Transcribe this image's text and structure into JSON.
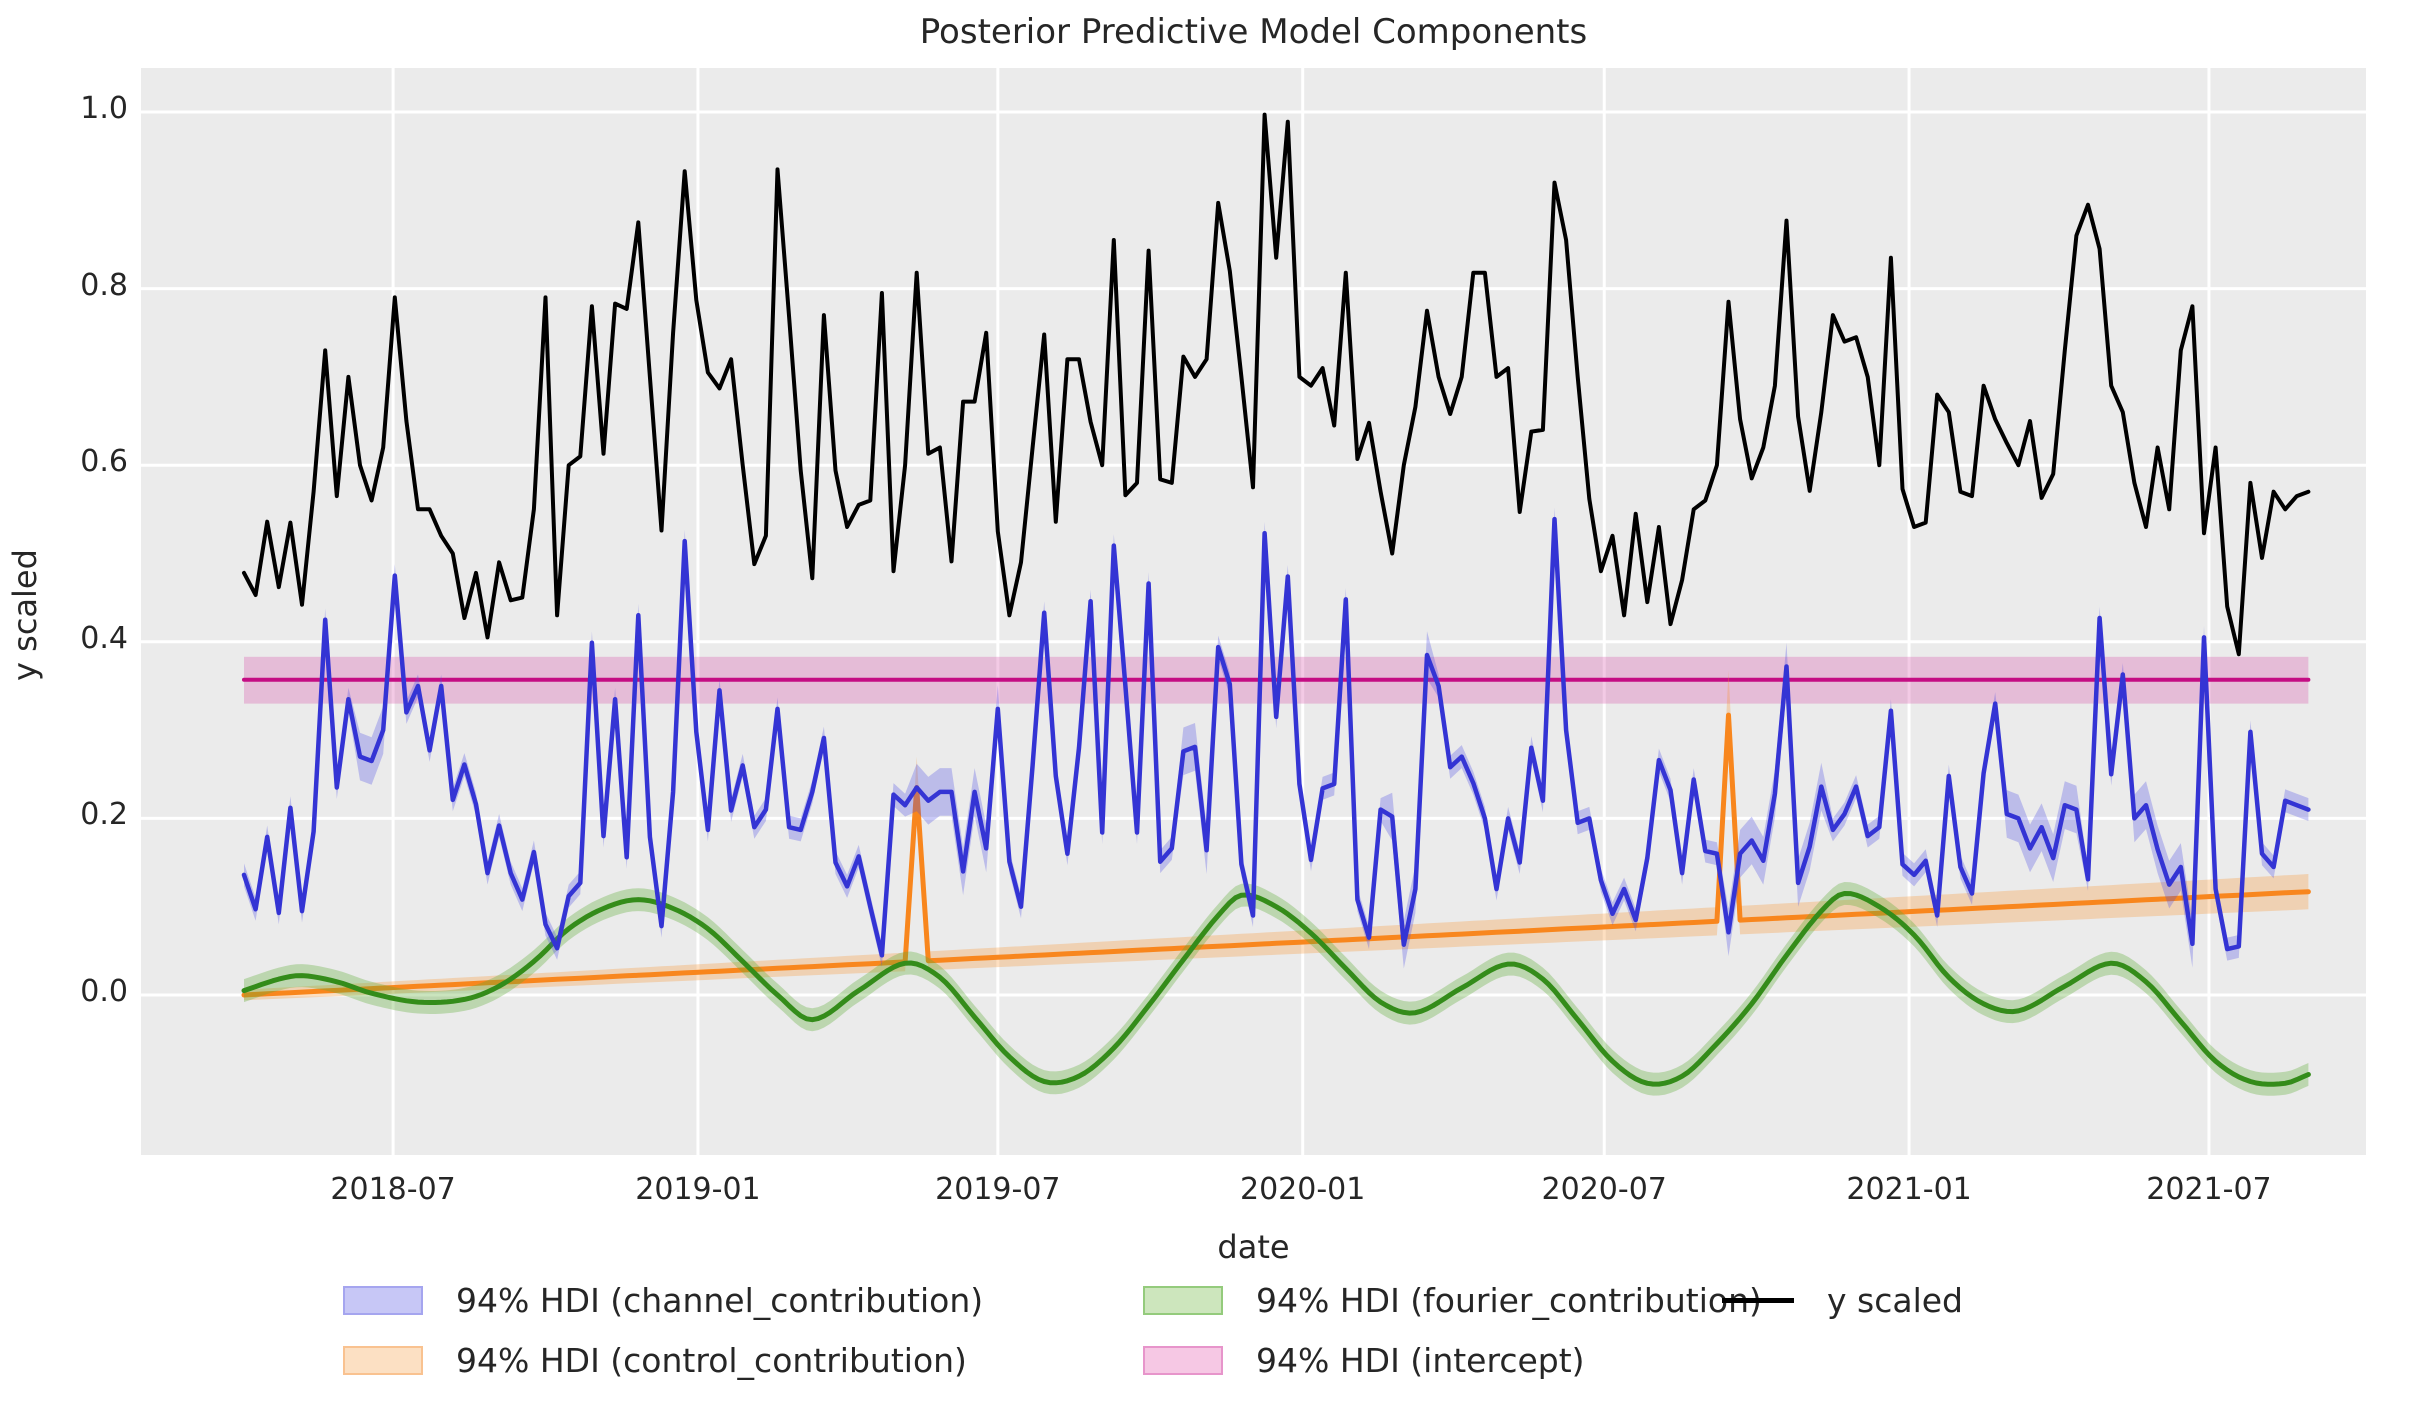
{
  "title": "Posterior Predictive Model Components",
  "axes": {
    "xlabel": "date",
    "ylabel": "y scaled",
    "yticks": [
      "0.0",
      "0.2",
      "0.4",
      "0.6",
      "0.8",
      "1.0"
    ],
    "ytick_values": [
      0.0,
      0.2,
      0.4,
      0.6,
      0.8,
      1.0
    ],
    "xticks": [
      {
        "label": "2018-07",
        "date": "2018-07-01"
      },
      {
        "label": "2019-01",
        "date": "2019-01-01"
      },
      {
        "label": "2019-07",
        "date": "2019-07-01"
      },
      {
        "label": "2020-01",
        "date": "2020-01-01"
      },
      {
        "label": "2020-07",
        "date": "2020-07-01"
      },
      {
        "label": "2021-01",
        "date": "2021-01-01"
      },
      {
        "label": "2021-07",
        "date": "2021-07-01"
      }
    ]
  },
  "colors": {
    "figure_bg": "#ffffff",
    "plot_bg": "#ebebeb",
    "grid": "#ffffff",
    "y_scaled": "#000000",
    "channel_line": "#3434d4",
    "channel_band": "rgba(80,80,230,0.30)",
    "control_line": "#f8861d",
    "control_band": "rgba(250,150,50,0.30)",
    "fourier_line": "#348c1a",
    "fourier_band": "rgba(90,170,50,0.32)",
    "intercept_line": "#c40d83",
    "intercept_band": "rgba(215,80,170,0.30)",
    "text": "#262626"
  },
  "legend": {
    "items": [
      {
        "key": "channel",
        "label": "94% HDI (channel_contribution)",
        "patch_fill": "#c7c7f6",
        "patch_edge": "#a5a5ef",
        "type": "patch",
        "col": 0,
        "row": 0
      },
      {
        "key": "control",
        "label": "94% HDI (control_contribution)",
        "patch_fill": "#fce0c3",
        "patch_edge": "#f9c290",
        "type": "patch",
        "col": 0,
        "row": 1
      },
      {
        "key": "fourier",
        "label": "94% HDI (fourier_contribution)",
        "patch_fill": "#cde6bd",
        "patch_edge": "#94cb7c",
        "type": "patch",
        "col": 1,
        "row": 0
      },
      {
        "key": "intercept",
        "label": "94% HDI (intercept)",
        "patch_fill": "#f6c8e4",
        "patch_edge": "#e795cb",
        "type": "patch",
        "col": 1,
        "row": 1
      },
      {
        "key": "y_scaled",
        "label": "y scaled",
        "type": "line",
        "col": 2,
        "row": 0
      }
    ]
  },
  "chart_data": {
    "type": "line",
    "title": "Posterior Predictive Model Components",
    "xlabel": "date",
    "ylabel": "y scaled",
    "ylim": [
      -0.18,
      1.05
    ],
    "grid": true,
    "legend_position": "below",
    "x_start_date": "2018-04-02",
    "x_step_days": 7,
    "n_points": 179,
    "intercept": {
      "mean": 0.357,
      "hdi_lower": 0.33,
      "hdi_upper": 0.383
    },
    "y_scaled_values": [
      0.478,
      0.453,
      0.536,
      0.462,
      0.535,
      0.442,
      0.57,
      0.73,
      0.565,
      0.7,
      0.6,
      0.56,
      0.62,
      0.79,
      0.65,
      0.55,
      0.55,
      0.52,
      0.5,
      0.427,
      0.478,
      0.405,
      0.49,
      0.447,
      0.45,
      0.55,
      0.79,
      0.43,
      0.6,
      0.61,
      0.78,
      0.613,
      0.783,
      0.777,
      0.875,
      0.7,
      0.526,
      0.75,
      0.933,
      0.787,
      0.705,
      0.687,
      0.72,
      0.6,
      0.488,
      0.52,
      0.935,
      0.768,
      0.594,
      0.472,
      0.77,
      0.594,
      0.53,
      0.555,
      0.56,
      0.795,
      0.48,
      0.6,
      0.818,
      0.613,
      0.62,
      0.491,
      0.672,
      0.672,
      0.75,
      0.525,
      0.43,
      0.49,
      0.62,
      0.748,
      0.536,
      0.72,
      0.72,
      0.649,
      0.6,
      0.855,
      0.566,
      0.58,
      0.843,
      0.584,
      0.58,
      0.723,
      0.7,
      0.72,
      0.897,
      0.82,
      0.7,
      0.575,
      0.997,
      0.835,
      0.989,
      0.7,
      0.69,
      0.71,
      0.645,
      0.818,
      0.607,
      0.648,
      0.57,
      0.5,
      0.6,
      0.666,
      0.775,
      0.7,
      0.658,
      0.7,
      0.818,
      0.818,
      0.7,
      0.71,
      0.547,
      0.638,
      0.64,
      0.92,
      0.855,
      0.7,
      0.562,
      0.48,
      0.52,
      0.43,
      0.545,
      0.445,
      0.53,
      0.42,
      0.47,
      0.55,
      0.56,
      0.6,
      0.785,
      0.652,
      0.585,
      0.62,
      0.69,
      0.877,
      0.655,
      0.571,
      0.66,
      0.77,
      0.74,
      0.745,
      0.7,
      0.6,
      0.835,
      0.573,
      0.53,
      0.535,
      0.68,
      0.66,
      0.57,
      0.565,
      0.69,
      0.652,
      0.625,
      0.6,
      0.65,
      0.563,
      0.59,
      0.73,
      0.86,
      0.895,
      0.845,
      0.69,
      0.66,
      0.58,
      0.53,
      0.62,
      0.55,
      0.73,
      0.78,
      0.523,
      0.62,
      0.44,
      0.386,
      0.58,
      0.495,
      0.57,
      0.55,
      0.565,
      0.57
    ],
    "channel_contribution": {
      "values": [
        0.136,
        0.097,
        0.179,
        0.093,
        0.212,
        0.095,
        0.185,
        0.425,
        0.235,
        0.335,
        0.27,
        0.265,
        0.3,
        0.475,
        0.32,
        0.35,
        0.277,
        0.35,
        0.221,
        0.261,
        0.216,
        0.138,
        0.192,
        0.138,
        0.108,
        0.162,
        0.08,
        0.053,
        0.112,
        0.127,
        0.399,
        0.18,
        0.335,
        0.156,
        0.43,
        0.179,
        0.078,
        0.23,
        0.514,
        0.298,
        0.187,
        0.345,
        0.209,
        0.26,
        0.19,
        0.21,
        0.324,
        0.19,
        0.187,
        0.23,
        0.291,
        0.15,
        0.123,
        0.157,
        0.1,
        0.045,
        0.227,
        0.215,
        0.235,
        0.22,
        0.23,
        0.23,
        0.14,
        0.23,
        0.166,
        0.324,
        0.151,
        0.1,
        0.26,
        0.433,
        0.248,
        0.16,
        0.28,
        0.446,
        0.184,
        0.509,
        0.35,
        0.184,
        0.466,
        0.151,
        0.166,
        0.276,
        0.281,
        0.164,
        0.394,
        0.352,
        0.148,
        0.09,
        0.523,
        0.315,
        0.474,
        0.239,
        0.153,
        0.234,
        0.239,
        0.448,
        0.108,
        0.065,
        0.21,
        0.202,
        0.057,
        0.12,
        0.385,
        0.35,
        0.258,
        0.27,
        0.24,
        0.2,
        0.12,
        0.2,
        0.15,
        0.28,
        0.22,
        0.539,
        0.3,
        0.195,
        0.2,
        0.13,
        0.092,
        0.12,
        0.085,
        0.155,
        0.266,
        0.232,
        0.138,
        0.244,
        0.163,
        0.16,
        0.071,
        0.16,
        0.175,
        0.152,
        0.228,
        0.372,
        0.127,
        0.168,
        0.236,
        0.187,
        0.205,
        0.236,
        0.18,
        0.19,
        0.322,
        0.148,
        0.136,
        0.152,
        0.09,
        0.248,
        0.145,
        0.115,
        0.251,
        0.33,
        0.205,
        0.2,
        0.166,
        0.19,
        0.155,
        0.215,
        0.21,
        0.131,
        0.427,
        0.25,
        0.363,
        0.2,
        0.215,
        0.165,
        0.125,
        0.145,
        0.058,
        0.405,
        0.12,
        0.052,
        0.055,
        0.298,
        0.16,
        0.145,
        0.22,
        0.215,
        0.21
      ],
      "hdi_half_base": 0.013,
      "hdi_half_wide": 0.027,
      "hdi_wide_ranges": [
        [
          "2018-06-11",
          "2018-06-26"
        ],
        [
          "2019-05-13",
          "2019-07-01"
        ],
        [
          "2019-10-21",
          "2019-11-04"
        ],
        [
          "2020-02-24",
          "2020-03-16"
        ],
        [
          "2020-09-14",
          "2020-11-09"
        ],
        [
          "2021-03-01",
          "2021-04-12"
        ],
        [
          "2021-05-17",
          "2021-06-21"
        ]
      ]
    },
    "control_contribution": {
      "trend_start_value": 0.0,
      "trend_end_value": 0.117,
      "spikes": [
        {
          "date": "2019-05-13",
          "value": 0.235,
          "hdi_half": 0.035
        },
        {
          "date": "2020-09-14",
          "value": 0.317,
          "hdi_half": 0.05
        }
      ],
      "hdi_half_start": 0.006,
      "hdi_half_end": 0.02
    },
    "fourier_contribution": {
      "anchors": [
        {
          "date": "2018-04-02",
          "value": 0.005
        },
        {
          "date": "2018-04-23",
          "value": 0.018
        },
        {
          "date": "2018-05-07",
          "value": 0.022
        },
        {
          "date": "2018-05-28",
          "value": 0.015
        },
        {
          "date": "2018-06-18",
          "value": 0.002
        },
        {
          "date": "2018-07-16",
          "value": -0.008
        },
        {
          "date": "2018-08-13",
          "value": -0.005
        },
        {
          "date": "2018-09-03",
          "value": 0.01
        },
        {
          "date": "2018-09-24",
          "value": 0.038
        },
        {
          "date": "2018-10-15",
          "value": 0.075
        },
        {
          "date": "2018-11-05",
          "value": 0.098
        },
        {
          "date": "2018-11-26",
          "value": 0.108
        },
        {
          "date": "2018-12-17",
          "value": 0.098
        },
        {
          "date": "2019-01-07",
          "value": 0.075
        },
        {
          "date": "2019-01-28",
          "value": 0.038
        },
        {
          "date": "2019-02-18",
          "value": 0.0
        },
        {
          "date": "2019-03-11",
          "value": -0.028
        },
        {
          "date": "2019-04-08",
          "value": 0.005
        },
        {
          "date": "2019-05-06",
          "value": 0.036
        },
        {
          "date": "2019-05-27",
          "value": 0.02
        },
        {
          "date": "2019-06-17",
          "value": -0.025
        },
        {
          "date": "2019-07-08",
          "value": -0.07
        },
        {
          "date": "2019-07-29",
          "value": -0.098
        },
        {
          "date": "2019-08-19",
          "value": -0.092
        },
        {
          "date": "2019-09-09",
          "value": -0.06
        },
        {
          "date": "2019-09-30",
          "value": -0.012
        },
        {
          "date": "2019-10-21",
          "value": 0.04
        },
        {
          "date": "2019-11-11",
          "value": 0.09
        },
        {
          "date": "2019-11-25",
          "value": 0.113
        },
        {
          "date": "2019-12-16",
          "value": 0.1
        },
        {
          "date": "2020-01-06",
          "value": 0.07
        },
        {
          "date": "2020-01-27",
          "value": 0.03
        },
        {
          "date": "2020-02-17",
          "value": -0.008
        },
        {
          "date": "2020-03-09",
          "value": -0.02
        },
        {
          "date": "2020-04-06",
          "value": 0.008
        },
        {
          "date": "2020-05-04",
          "value": 0.035
        },
        {
          "date": "2020-05-25",
          "value": 0.018
        },
        {
          "date": "2020-06-15",
          "value": -0.028
        },
        {
          "date": "2020-07-06",
          "value": -0.075
        },
        {
          "date": "2020-07-27",
          "value": -0.1
        },
        {
          "date": "2020-08-17",
          "value": -0.092
        },
        {
          "date": "2020-09-07",
          "value": -0.055
        },
        {
          "date": "2020-09-28",
          "value": -0.01
        },
        {
          "date": "2020-10-19",
          "value": 0.045
        },
        {
          "date": "2020-11-09",
          "value": 0.095
        },
        {
          "date": "2020-11-23",
          "value": 0.115
        },
        {
          "date": "2020-12-14",
          "value": 0.1
        },
        {
          "date": "2021-01-04",
          "value": 0.068
        },
        {
          "date": "2021-01-25",
          "value": 0.02
        },
        {
          "date": "2021-02-15",
          "value": -0.01
        },
        {
          "date": "2021-03-08",
          "value": -0.018
        },
        {
          "date": "2021-04-05",
          "value": 0.01
        },
        {
          "date": "2021-05-03",
          "value": 0.036
        },
        {
          "date": "2021-05-24",
          "value": 0.015
        },
        {
          "date": "2021-06-14",
          "value": -0.03
        },
        {
          "date": "2021-07-05",
          "value": -0.075
        },
        {
          "date": "2021-07-26",
          "value": -0.098
        },
        {
          "date": "2021-08-16",
          "value": -0.1
        },
        {
          "date": "2021-08-30",
          "value": -0.09
        }
      ],
      "hdi_half": 0.013
    }
  }
}
